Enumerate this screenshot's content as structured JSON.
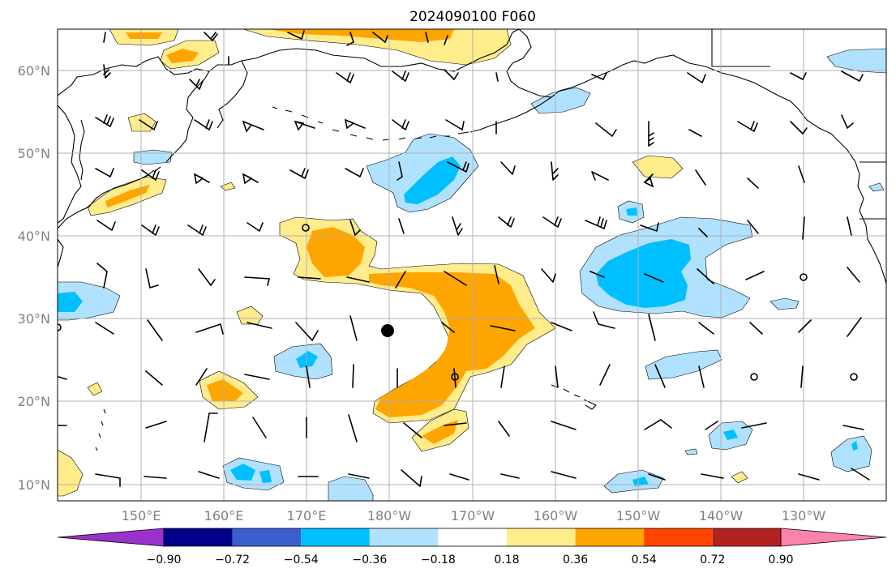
{
  "title": "2024090100 F060",
  "latitude_labels": [
    "60°N",
    "50°N",
    "40°N",
    "30°N",
    "20°N",
    "10°N"
  ],
  "longitude_labels": [
    "150°E",
    "160°E",
    "170°E",
    "180°W",
    "170°W",
    "160°W",
    "150°W",
    "140°W",
    "130°W"
  ],
  "colorbar": {
    "tick_labels": [
      "−0.90",
      "−0.72",
      "−0.54",
      "−0.36",
      "−0.18",
      "0.18",
      "0.36",
      "0.54",
      "0.72",
      "0.90"
    ],
    "colors": [
      "#9932cc",
      "#00008b",
      "#3a5fcd",
      "#00bfff",
      "#b0e2ff",
      "#ffffff",
      "#ffec8b",
      "#ffa500",
      "#ff4500",
      "#b22222",
      "#ff82ab"
    ]
  },
  "colors": {
    "light_blue": "#b0e2ff",
    "deep_sky_blue": "#00bfff",
    "light_yellow": "#ffec8b",
    "orange": "#ffa500",
    "grid": "#b0b0b0",
    "axis_label": "#808080"
  }
}
